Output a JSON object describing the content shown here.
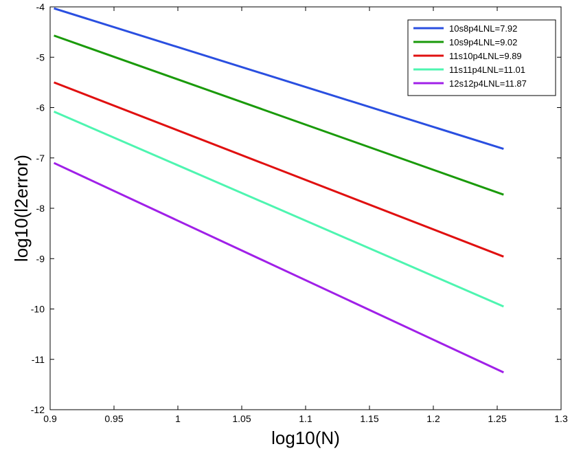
{
  "chart_data": {
    "type": "line",
    "title": "",
    "xlabel": "log10(N)",
    "ylabel": "log10(l2error)",
    "xlim": [
      0.9,
      1.3
    ],
    "ylim": [
      -12,
      -4
    ],
    "xticks": [
      "0.9",
      "0.95",
      "1",
      "1.05",
      "1.1",
      "1.15",
      "1.2",
      "1.25",
      "1.3"
    ],
    "yticks": [
      "-4",
      "-5",
      "-6",
      "-7",
      "-8",
      "-9",
      "-10",
      "-11",
      "-12"
    ],
    "grid": false,
    "legend_position": "top-right",
    "series": [
      {
        "name": "10s8p4LNL=7.92",
        "color": "#2a4fe0",
        "x": [
          0.903,
          1.255
        ],
        "y": [
          -4.03,
          -6.82
        ]
      },
      {
        "name": "10s9p4LNL=9.02",
        "color": "#1a9a0a",
        "x": [
          0.903,
          1.255
        ],
        "y": [
          -4.57,
          -7.73
        ]
      },
      {
        "name": "11s10p4LNL=9.89",
        "color": "#e01010",
        "x": [
          0.903,
          1.255
        ],
        "y": [
          -5.5,
          -8.96
        ]
      },
      {
        "name": "11s11p4LNL=11.01",
        "color": "#4ef5b0",
        "x": [
          0.903,
          1.255
        ],
        "y": [
          -6.08,
          -9.95
        ]
      },
      {
        "name": "12s12p4LNL=11.87",
        "color": "#a020e8",
        "x": [
          0.903,
          1.255
        ],
        "y": [
          -7.1,
          -11.26
        ]
      }
    ]
  }
}
